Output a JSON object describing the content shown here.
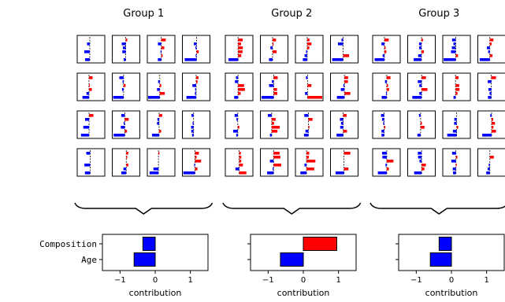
{
  "chart_data": {
    "type": "bar",
    "orientation": "horizontal",
    "colors": {
      "positive": "#ff0000",
      "negative": "#0000ff",
      "edge": "#000000"
    },
    "groups": [
      {
        "title": "Group 1",
        "thumbnail_grid": {
          "rows": 4,
          "cols": 4
        },
        "summary": {
          "categories": [
            "Composition",
            "Age"
          ],
          "values": [
            -0.35,
            -0.6
          ],
          "xlabel": "contribution",
          "xticks": [
            "−1",
            "0",
            "1"
          ],
          "xlim": [
            -1.5,
            1.5
          ]
        }
      },
      {
        "title": "Group 2",
        "thumbnail_grid": {
          "rows": 4,
          "cols": 4
        },
        "summary": {
          "categories": [
            "Composition",
            "Age"
          ],
          "values": [
            0.95,
            -0.65
          ],
          "xlabel": "contribution",
          "xticks": [
            "−1",
            "0",
            "1"
          ],
          "xlim": [
            -1.5,
            1.5
          ]
        }
      },
      {
        "title": "Group 3",
        "thumbnail_grid": {
          "rows": 4,
          "cols": 4
        },
        "summary": {
          "categories": [
            "Composition",
            "Age"
          ],
          "values": [
            -0.35,
            -0.6
          ],
          "xlabel": "contribution",
          "xticks": [
            "−1",
            "0",
            "1"
          ],
          "xlim": [
            -1.5,
            1.5
          ]
        }
      }
    ]
  }
}
